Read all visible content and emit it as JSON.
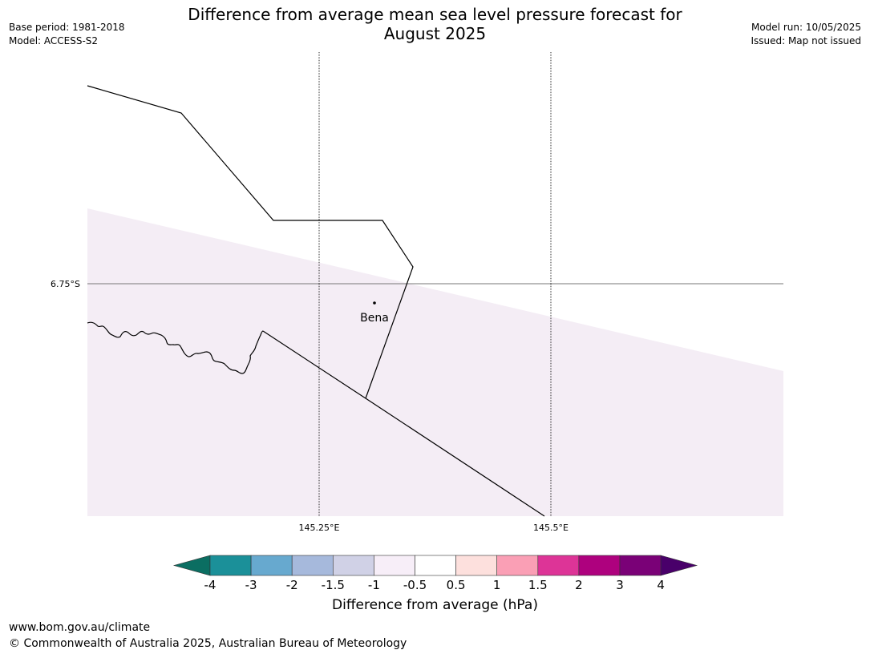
{
  "header": {
    "title_line1": "Difference from average mean sea level pressure forecast for",
    "title_line2": "August 2025",
    "base_period": "Base period: 1981-2018",
    "model": "Model: ACCESS-S2",
    "model_run": "Model run: 10/05/2025",
    "issued": "Issued: Map not issued"
  },
  "map": {
    "lat_label": "6.75°S",
    "lon_labels": [
      "145.25°E",
      "145.5°E"
    ],
    "place_name": "Bena",
    "shading_color": "#f4edf5"
  },
  "colorbar": {
    "label": "Difference from average (hPa)",
    "ticks": [
      "-4",
      "-3",
      "-2",
      "-1.5",
      "-1",
      "-0.5",
      "0.5",
      "1",
      "1.5",
      "2",
      "3",
      "4"
    ],
    "colors": [
      "#0b6e62",
      "#1b9099",
      "#67a9cf",
      "#a6b9dc",
      "#d0d1e6",
      "#f7eef8",
      "#ffffff",
      "#fde0dd",
      "#fa9fb5",
      "#dd3497",
      "#ae017e",
      "#7a0177",
      "#49006a"
    ]
  },
  "footer": {
    "url": "www.bom.gov.au/climate",
    "copyright": "© Commonwealth of Australia 2025, Australian Bureau of Meteorology"
  }
}
